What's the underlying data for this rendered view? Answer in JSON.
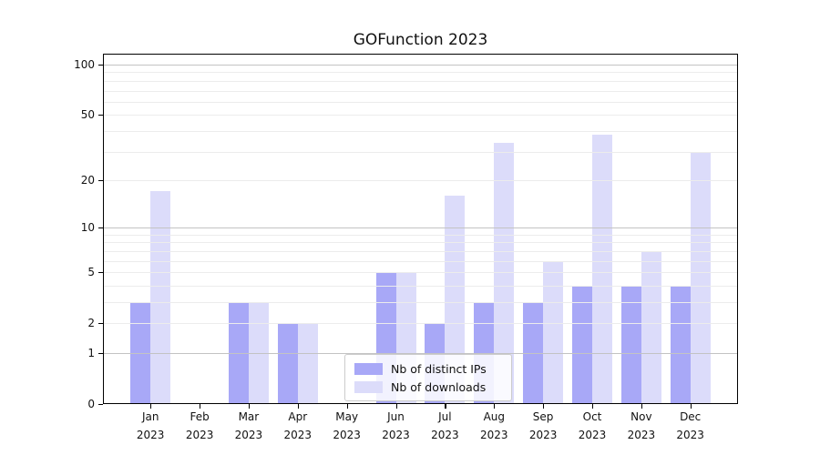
{
  "figure": {
    "title": "GOFunction 2023",
    "background": "#ffffff"
  },
  "chart_data": {
    "type": "bar",
    "title": "GOFunction 2023",
    "categories": [
      "Jan",
      "Feb",
      "Mar",
      "Apr",
      "May",
      "Jun",
      "Jul",
      "Aug",
      "Sep",
      "Oct",
      "Nov",
      "Dec"
    ],
    "category_year": "2023",
    "series": [
      {
        "name": "Nb of distinct IPs",
        "color": "#a8a8f7",
        "values": [
          3,
          0,
          3,
          2,
          0,
          5,
          2,
          3,
          3,
          4,
          4,
          4
        ]
      },
      {
        "name": "Nb of downloads",
        "color": "#dcdcfa",
        "values": [
          17,
          0,
          3,
          2,
          0,
          5,
          16,
          34,
          6,
          38,
          7,
          30
        ]
      }
    ],
    "xlabel": "",
    "ylabel": "",
    "yscale": "log10(1+v)",
    "ylim": [
      0,
      116
    ],
    "ytick_values": [
      0,
      1,
      2,
      5,
      10,
      20,
      50,
      100
    ],
    "major_gridline_values": [
      1,
      10,
      100
    ],
    "minor_gridline_values": [
      2,
      3,
      4,
      5,
      6,
      7,
      8,
      9,
      20,
      30,
      40,
      50,
      60,
      70,
      80,
      90
    ],
    "grid": true,
    "legend_position": "lower center"
  },
  "colors": {
    "bar_distinct_ips": "#a8a8f7",
    "bar_downloads": "#dcdcfa",
    "gridline_major": "#c3c3c3",
    "gridline_minor": "#ececec",
    "axis": "#000000",
    "background": "#ffffff"
  }
}
